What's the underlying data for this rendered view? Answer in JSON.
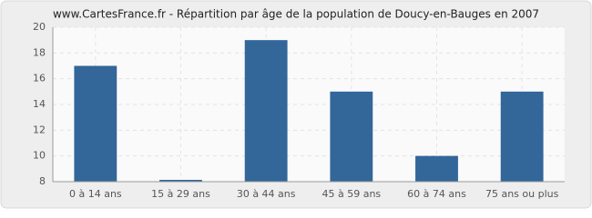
{
  "chart_data": {
    "type": "bar",
    "title": "www.CartesFrance.fr - Répartition par âge de la population de Doucy-en-Bauges en 2007",
    "categories": [
      "0 à 14 ans",
      "15 à 29 ans",
      "30 à 44 ans",
      "45 à 59 ans",
      "60 à 74 ans",
      "75 ans ou plus"
    ],
    "values": [
      17,
      8,
      19,
      15,
      10,
      15
    ],
    "color": "#336699",
    "ylim": [
      8,
      20
    ],
    "yticks": [
      8,
      10,
      12,
      14,
      16,
      18,
      20
    ],
    "grid": true
  }
}
